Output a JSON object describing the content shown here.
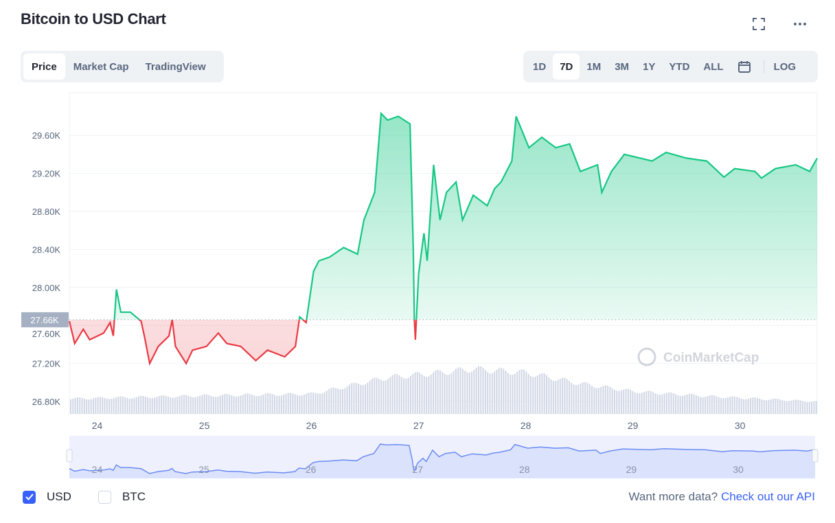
{
  "header": {
    "title": "Bitcoin to USD Chart",
    "icons": [
      "fullscreen-icon",
      "more-icon"
    ]
  },
  "view_tabs": [
    {
      "label": "Price",
      "active": true
    },
    {
      "label": "Market Cap",
      "active": false
    },
    {
      "label": "TradingView",
      "active": false
    }
  ],
  "range_tabs": [
    {
      "label": "1D",
      "active": false
    },
    {
      "label": "7D",
      "active": true
    },
    {
      "label": "1M",
      "active": false
    },
    {
      "label": "3M",
      "active": false
    },
    {
      "label": "1Y",
      "active": false
    },
    {
      "label": "YTD",
      "active": false
    },
    {
      "label": "ALL",
      "active": false
    }
  ],
  "calendar_icon": "calendar-icon",
  "log_label": "LOG",
  "watermark": "CoinMarketCap",
  "colors": {
    "up": "#16c784",
    "down": "#ea3943",
    "volume": "#cfd6e4",
    "navigator": "#6b8bf5",
    "link": "#3861fb"
  },
  "chart_data": {
    "type": "line",
    "title": "",
    "y_ticks": [
      "26.80K",
      "27.20K",
      "27.60K",
      "28.00K",
      "28.40K",
      "28.80K",
      "29.20K",
      "29.60K"
    ],
    "y_tick_values": [
      26.8,
      27.2,
      27.6,
      28.0,
      28.4,
      28.8,
      29.2,
      29.6
    ],
    "ylim": [
      26.75,
      30.1
    ],
    "x_ticks": [
      "24",
      "25",
      "26",
      "27",
      "28",
      "29",
      "30"
    ],
    "x_tick_values": [
      24,
      25,
      26,
      27,
      28,
      29,
      30
    ],
    "xlim": [
      23.74,
      30.72
    ],
    "grid": true,
    "baseline": {
      "label": "27.66K",
      "value": 27.66
    },
    "series": [
      {
        "unit": "K USD",
        "points": [
          [
            23.74,
            27.645
          ],
          [
            23.79,
            27.41
          ],
          [
            23.87,
            27.56
          ],
          [
            23.93,
            27.45
          ],
          [
            24.06,
            27.52
          ],
          [
            24.12,
            27.63
          ],
          [
            24.15,
            27.49
          ],
          [
            24.18,
            27.98
          ],
          [
            24.22,
            27.74
          ],
          [
            24.31,
            27.74
          ],
          [
            24.41,
            27.645
          ],
          [
            24.44,
            27.49
          ],
          [
            24.49,
            27.2
          ],
          [
            24.57,
            27.38
          ],
          [
            24.67,
            27.49
          ],
          [
            24.7,
            27.66
          ],
          [
            24.73,
            27.38
          ],
          [
            24.83,
            27.2
          ],
          [
            24.89,
            27.34
          ],
          [
            25.02,
            27.38
          ],
          [
            25.13,
            27.52
          ],
          [
            25.21,
            27.41
          ],
          [
            25.34,
            27.38
          ],
          [
            25.48,
            27.23
          ],
          [
            25.59,
            27.34
          ],
          [
            25.75,
            27.27
          ],
          [
            25.85,
            27.38
          ],
          [
            25.89,
            27.69
          ],
          [
            25.95,
            27.63
          ],
          [
            26.02,
            28.17
          ],
          [
            26.07,
            28.28
          ],
          [
            26.17,
            28.32
          ],
          [
            26.3,
            28.42
          ],
          [
            26.43,
            28.35
          ],
          [
            26.49,
            28.71
          ],
          [
            26.59,
            29.0
          ],
          [
            26.65,
            29.83
          ],
          [
            26.71,
            29.76
          ],
          [
            26.81,
            29.8
          ],
          [
            26.92,
            29.72
          ],
          [
            26.95,
            28.42
          ],
          [
            26.96,
            27.67
          ],
          [
            26.97,
            27.45
          ],
          [
            27.0,
            28.14
          ],
          [
            27.05,
            28.57
          ],
          [
            27.08,
            28.28
          ],
          [
            27.14,
            29.29
          ],
          [
            27.2,
            28.71
          ],
          [
            27.26,
            29.0
          ],
          [
            27.35,
            29.11
          ],
          [
            27.41,
            28.71
          ],
          [
            27.51,
            28.97
          ],
          [
            27.64,
            28.86
          ],
          [
            27.71,
            29.04
          ],
          [
            27.77,
            29.11
          ],
          [
            27.87,
            29.33
          ],
          [
            27.91,
            29.8
          ],
          [
            28.03,
            29.47
          ],
          [
            28.15,
            29.58
          ],
          [
            28.28,
            29.47
          ],
          [
            28.41,
            29.51
          ],
          [
            28.51,
            29.22
          ],
          [
            28.67,
            29.29
          ],
          [
            28.71,
            29.0
          ],
          [
            28.8,
            29.22
          ],
          [
            28.92,
            29.4
          ],
          [
            29.18,
            29.33
          ],
          [
            29.31,
            29.42
          ],
          [
            29.5,
            29.36
          ],
          [
            29.69,
            29.33
          ],
          [
            29.85,
            29.16
          ],
          [
            29.95,
            29.25
          ],
          [
            30.14,
            29.22
          ],
          [
            30.2,
            29.15
          ],
          [
            30.33,
            29.25
          ],
          [
            30.52,
            29.29
          ],
          [
            30.65,
            29.22
          ],
          [
            30.72,
            29.36
          ]
        ]
      }
    ],
    "volume_relative": [
      [
        23.74,
        0.25
      ],
      [
        25.0,
        0.3
      ],
      [
        26.0,
        0.33
      ],
      [
        26.7,
        0.6
      ],
      [
        27.2,
        0.68
      ],
      [
        27.5,
        0.74
      ],
      [
        28.0,
        0.68
      ],
      [
        28.5,
        0.5
      ],
      [
        29.0,
        0.37
      ],
      [
        29.7,
        0.29
      ],
      [
        30.72,
        0.2
      ]
    ]
  },
  "footer": {
    "options": [
      {
        "label": "USD",
        "checked": true
      },
      {
        "label": "BTC",
        "checked": false
      }
    ],
    "prompt": "Want more data?",
    "link": "Check out our API"
  }
}
